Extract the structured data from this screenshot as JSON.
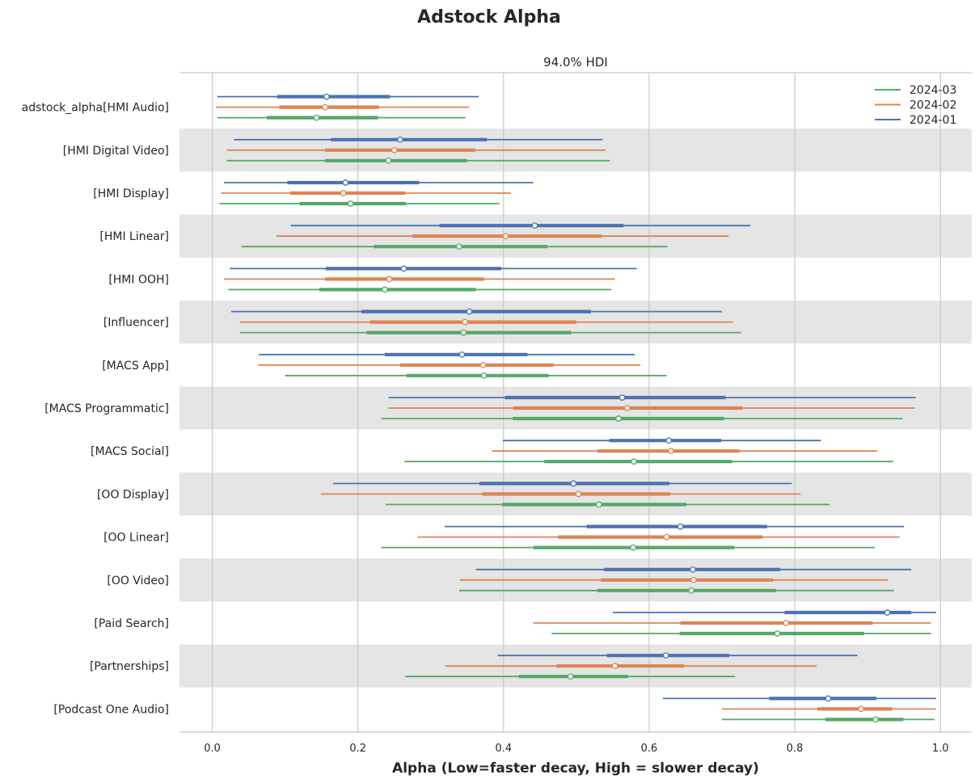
{
  "chart_data": {
    "type": "forest",
    "title": "Adstock Alpha",
    "subtitle": "94.0% HDI",
    "xlabel": "Alpha (Low=faster decay, High = slower decay)",
    "xlim": [
      -0.045,
      1.043
    ],
    "xticks": [
      0.0,
      0.2,
      0.4,
      0.6,
      0.8,
      1.0
    ],
    "xtick_labels": [
      "0.0",
      "0.2",
      "0.4",
      "0.6",
      "0.8",
      "1.0"
    ],
    "grid": true,
    "legend_position": "top-right",
    "series": [
      {
        "name": "2024-01",
        "color": "#4c72b0"
      },
      {
        "name": "2024-02",
        "color": "#dd8452"
      },
      {
        "name": "2024-03",
        "color": "#55a868"
      }
    ],
    "legend_order": [
      "2024-03",
      "2024-02",
      "2024-01"
    ],
    "categories": [
      "adstock_alpha[HMI Audio]",
      "[HMI Digital Video]",
      "[HMI Display]",
      "[HMI Linear]",
      "[HMI OOH]",
      "[Influencer]",
      "[MACS App]",
      "[MACS Programmatic]",
      "[MACS Social]",
      "[OO Display]",
      "[OO Linear]",
      "[OO Video]",
      "[Paid Search]",
      "[Partnerships]",
      "[Podcast One Audio]"
    ],
    "estimates": [
      [
        [
          0.007,
          0.089,
          0.157,
          0.244,
          0.366
        ],
        [
          0.005,
          0.092,
          0.155,
          0.229,
          0.353
        ],
        [
          0.007,
          0.075,
          0.143,
          0.228,
          0.348
        ]
      ],
      [
        [
          0.03,
          0.163,
          0.258,
          0.377,
          0.536
        ],
        [
          0.02,
          0.155,
          0.25,
          0.361,
          0.54
        ],
        [
          0.02,
          0.155,
          0.242,
          0.35,
          0.546
        ]
      ],
      [
        [
          0.016,
          0.103,
          0.183,
          0.284,
          0.441
        ],
        [
          0.012,
          0.107,
          0.18,
          0.265,
          0.41
        ],
        [
          0.01,
          0.12,
          0.19,
          0.266,
          0.394
        ]
      ],
      [
        [
          0.108,
          0.312,
          0.443,
          0.565,
          0.739
        ],
        [
          0.088,
          0.275,
          0.403,
          0.535,
          0.709
        ],
        [
          0.04,
          0.222,
          0.339,
          0.46,
          0.625
        ]
      ],
      [
        [
          0.024,
          0.156,
          0.263,
          0.397,
          0.583
        ],
        [
          0.016,
          0.155,
          0.243,
          0.373,
          0.553
        ],
        [
          0.022,
          0.147,
          0.237,
          0.362,
          0.548
        ]
      ],
      [
        [
          0.026,
          0.205,
          0.353,
          0.52,
          0.7
        ],
        [
          0.038,
          0.217,
          0.347,
          0.5,
          0.715
        ],
        [
          0.038,
          0.212,
          0.345,
          0.493,
          0.726
        ]
      ],
      [
        [
          0.064,
          0.237,
          0.343,
          0.433,
          0.58
        ],
        [
          0.063,
          0.258,
          0.372,
          0.469,
          0.588
        ],
        [
          0.1,
          0.267,
          0.373,
          0.462,
          0.624
        ]
      ],
      [
        [
          0.242,
          0.402,
          0.563,
          0.705,
          0.966
        ],
        [
          0.242,
          0.413,
          0.57,
          0.728,
          0.965
        ],
        [
          0.232,
          0.413,
          0.558,
          0.703,
          0.948
        ]
      ],
      [
        [
          0.399,
          0.545,
          0.627,
          0.699,
          0.836
        ],
        [
          0.384,
          0.529,
          0.63,
          0.724,
          0.913
        ],
        [
          0.264,
          0.456,
          0.579,
          0.714,
          0.935
        ]
      ],
      [
        [
          0.166,
          0.367,
          0.496,
          0.628,
          0.796
        ],
        [
          0.149,
          0.371,
          0.503,
          0.629,
          0.808
        ],
        [
          0.238,
          0.398,
          0.531,
          0.651,
          0.848
        ]
      ],
      [
        [
          0.319,
          0.514,
          0.643,
          0.762,
          0.95
        ],
        [
          0.282,
          0.475,
          0.624,
          0.756,
          0.944
        ],
        [
          0.232,
          0.441,
          0.578,
          0.717,
          0.91
        ]
      ],
      [
        [
          0.362,
          0.538,
          0.66,
          0.78,
          0.96
        ],
        [
          0.34,
          0.534,
          0.661,
          0.77,
          0.928
        ],
        [
          0.339,
          0.529,
          0.658,
          0.774,
          0.936
        ]
      ],
      [
        [
          0.55,
          0.786,
          0.927,
          0.96,
          0.994
        ],
        [
          0.441,
          0.643,
          0.788,
          0.907,
          0.987
        ],
        [
          0.466,
          0.642,
          0.776,
          0.895,
          0.987
        ]
      ],
      [
        [
          0.392,
          0.542,
          0.623,
          0.71,
          0.886
        ],
        [
          0.32,
          0.473,
          0.553,
          0.648,
          0.83
        ],
        [
          0.265,
          0.421,
          0.492,
          0.571,
          0.718
        ]
      ],
      [
        [
          0.619,
          0.765,
          0.846,
          0.912,
          0.994
        ],
        [
          0.7,
          0.831,
          0.891,
          0.934,
          0.994
        ],
        [
          0.7,
          0.842,
          0.911,
          0.949,
          0.992
        ]
      ]
    ]
  }
}
